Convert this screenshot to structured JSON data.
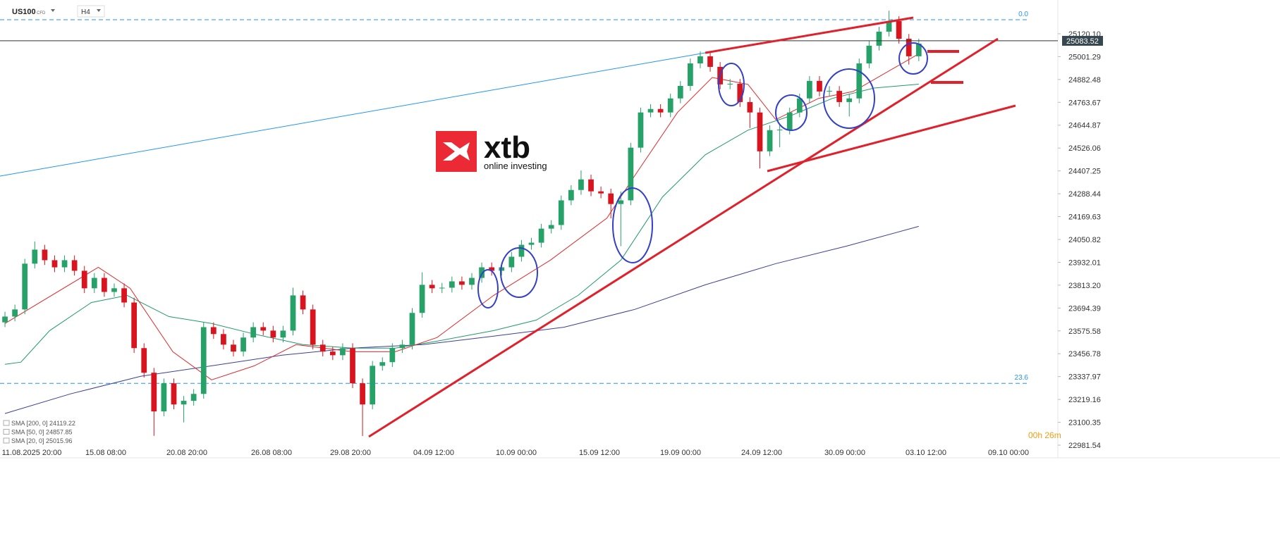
{
  "header": {
    "symbol": "US100",
    "instrument_type": "CFD",
    "timeframe": "H4"
  },
  "logo": {
    "brand": "xtb",
    "tagline": "online investing"
  },
  "timer": "00h 26m",
  "chart_data": {
    "type": "candlestick",
    "xlim": [
      -0.5,
      106
    ],
    "ylim": [
      22915.7,
      25295.6
    ],
    "xtick_labels": [
      "11.08.2025  20:00",
      "15.08  08:00",
      "20.08  20:00",
      "26.08  08:00",
      "29.08  20:00",
      "04.09  12:00",
      "10.09  00:00",
      "15.09  12:00",
      "19.09  00:00",
      "24.09  12:00",
      "30.09  00:00",
      "03.10  12:00",
      "09.10  00:00"
    ],
    "yticks": [
      {
        "value": 25120.1,
        "label": "25120.10"
      },
      {
        "value": 25001.29,
        "label": "25001.29"
      },
      {
        "value": 24882.48,
        "label": "24882.48"
      },
      {
        "value": 24763.67,
        "label": "24763.67"
      },
      {
        "value": 24644.87,
        "label": "24644.87"
      },
      {
        "value": 24526.06,
        "label": "24526.06"
      },
      {
        "value": 24407.25,
        "label": "24407.25"
      },
      {
        "value": 24288.44,
        "label": "24288.44"
      },
      {
        "value": 24169.63,
        "label": "24169.63"
      },
      {
        "value": 24050.82,
        "label": "24050.82"
      },
      {
        "value": 23932.01,
        "label": "23932.01"
      },
      {
        "value": 23813.2,
        "label": "23813.20"
      },
      {
        "value": 23694.39,
        "label": "23694.39"
      },
      {
        "value": 23575.58,
        "label": "23575.58"
      },
      {
        "value": 23456.78,
        "label": "23456.78"
      },
      {
        "value": 23337.97,
        "label": "23337.97"
      },
      {
        "value": 23219.16,
        "label": "23219.16"
      },
      {
        "value": 23100.35,
        "label": "23100.35"
      },
      {
        "value": 22981.54,
        "label": "22981.54"
      }
    ],
    "current_price": 25083.52,
    "bull_color": "#26a269",
    "bear_color": "#d8141e",
    "open": [
      23620,
      23650,
      23687,
      23925,
      23998,
      23943,
      23906,
      23943,
      23888,
      23797,
      23851,
      23778,
      23797,
      23723,
      23486,
      23358,
      23157,
      23303,
      23193,
      23212,
      23248,
      23595,
      23559,
      23504,
      23468,
      23541,
      23595,
      23577,
      23541,
      23577,
      23760,
      23687,
      23504,
      23468,
      23449,
      23486,
      23303,
      23193,
      23394,
      23413,
      23486,
      23504,
      23669,
      23815,
      23797,
      23800,
      23833,
      23815,
      23851,
      23906,
      23888,
      23906,
      23961,
      24023,
      24034,
      24107,
      24126,
      24254,
      24308,
      24363,
      24301,
      24290,
      24235,
      24254,
      24528,
      24711,
      24729,
      24711,
      24784,
      24849,
      24966,
      25003,
      24948,
      24857,
      24860,
      24765,
      24711,
      24509,
      24619,
      24622,
      24711,
      24784,
      24875,
      24820,
      24823,
      24765,
      24784,
      24966,
      25058,
      25131,
      25186,
      25094,
      25003
    ],
    "high": [
      23675,
      23712,
      23950,
      24040,
      24023,
      23968,
      23968,
      23968,
      23913,
      23876,
      23876,
      23822,
      23822,
      23748,
      23511,
      23383,
      23328,
      23328,
      23237,
      23273,
      23620,
      23620,
      23584,
      23529,
      23566,
      23620,
      23620,
      23602,
      23602,
      23800,
      23785,
      23712,
      23529,
      23493,
      23511,
      23511,
      23328,
      23419,
      23438,
      23511,
      23529,
      23694,
      23880,
      23840,
      23825,
      23858,
      23858,
      23876,
      23931,
      23931,
      23931,
      23986,
      24048,
      24059,
      24132,
      24151,
      24279,
      24333,
      24410,
      24388,
      24326,
      24315,
      24300,
      24553,
      24736,
      24754,
      24754,
      24809,
      24874,
      24991,
      25028,
      25028,
      24973,
      24885,
      24885,
      24790,
      24736,
      24644,
      24644,
      24736,
      24809,
      24900,
      24900,
      24848,
      24848,
      24809,
      24991,
      25083,
      25156,
      25240,
      25211,
      25119,
      25094
    ],
    "low": [
      23595,
      23625,
      23662,
      23900,
      23918,
      23881,
      23881,
      23863,
      23772,
      23772,
      23753,
      23753,
      23698,
      23461,
      23333,
      23030,
      23132,
      23168,
      23100,
      23187,
      23223,
      23534,
      23479,
      23443,
      23443,
      23516,
      23552,
      23516,
      23516,
      23552,
      23662,
      23479,
      23443,
      23424,
      23424,
      23278,
      23029,
      23168,
      23369,
      23388,
      23461,
      23479,
      23644,
      23772,
      23772,
      23775,
      23790,
      23790,
      23826,
      23863,
      23863,
      23881,
      23936,
      23998,
      24009,
      24082,
      24101,
      24229,
      24283,
      24276,
      24265,
      24160,
      24016,
      24229,
      24503,
      24686,
      24686,
      24686,
      24759,
      24824,
      24941,
      24923,
      24832,
      24832,
      24740,
      24630,
      24420,
      24484,
      24530,
      24597,
      24686,
      24759,
      24795,
      24795,
      24740,
      24690,
      24759,
      24941,
      25033,
      25106,
      25069,
      24960,
      24978
    ],
    "close": [
      23650,
      23687,
      23925,
      23998,
      23943,
      23906,
      23943,
      23888,
      23797,
      23851,
      23778,
      23797,
      23723,
      23486,
      23358,
      23157,
      23303,
      23193,
      23212,
      23248,
      23595,
      23559,
      23504,
      23468,
      23541,
      23595,
      23577,
      23541,
      23577,
      23760,
      23687,
      23504,
      23468,
      23449,
      23486,
      23303,
      23193,
      23394,
      23413,
      23486,
      23504,
      23669,
      23815,
      23797,
      23800,
      23833,
      23815,
      23851,
      23906,
      23888,
      23906,
      23961,
      24023,
      24034,
      24107,
      24126,
      24254,
      24308,
      24363,
      24301,
      24290,
      24235,
      24254,
      24528,
      24711,
      24729,
      24711,
      24784,
      24849,
      24966,
      25003,
      24948,
      24857,
      24860,
      24765,
      24711,
      24509,
      24619,
      24622,
      24711,
      24784,
      24875,
      24820,
      24823,
      24765,
      24784,
      24966,
      25058,
      25131,
      25186,
      25094,
      25003,
      25069
    ],
    "levels": [
      {
        "label": "0.0",
        "value": 25193,
        "color": "#2196f3"
      },
      {
        "label": "23.6",
        "value": 23303,
        "color": "#2196f3"
      }
    ],
    "series": [
      {
        "name": "SMA [200, 0] 24119.22",
        "color": "#3b3f9a",
        "x": [
          0,
          6.6,
          13.7,
          20.8,
          27.9,
          35,
          42.1,
          49.2,
          56.3,
          63.4,
          70.5,
          77.6,
          84.7,
          92
        ],
        "values": [
          23146,
          23248,
          23340,
          23394,
          23449,
          23486,
          23504,
          23548,
          23595,
          23687,
          23815,
          23925,
          24016,
          24119
        ]
      },
      {
        "name": "SMA [50, 0] 24857.85",
        "color": "#1f9a6a",
        "x": [
          0,
          1.6,
          4.5,
          8.7,
          12.3,
          16.5,
          20.8,
          25.1,
          30,
          35,
          39.3,
          43.5,
          49.2,
          53.5,
          57.7,
          62,
          66.2,
          70.5,
          74.8,
          79,
          83.3,
          87.5,
          92
        ],
        "values": [
          23402,
          23413,
          23577,
          23723,
          23760,
          23650,
          23614,
          23559,
          23504,
          23486,
          23486,
          23522,
          23577,
          23632,
          23760,
          23943,
          24272,
          24491,
          24619,
          24692,
          24784,
          24838,
          24858
        ]
      },
      {
        "name": "SMA [20, 0] 25015.96",
        "color": "#e0292b",
        "x": [
          0,
          9.4,
          12.6,
          16.9,
          20.8,
          25.1,
          29.3,
          35,
          39.3,
          43.5,
          49.2,
          54.9,
          60.6,
          63.4,
          67.7,
          71.2,
          74.8,
          77.6,
          81.9,
          85.4,
          92
        ],
        "values": [
          23614,
          23906,
          23797,
          23467,
          23321,
          23394,
          23504,
          23467,
          23467,
          23541,
          23760,
          23943,
          24162,
          24382,
          24711,
          24893,
          24857,
          24674,
          24784,
          24820,
          25016
        ]
      }
    ]
  }
}
